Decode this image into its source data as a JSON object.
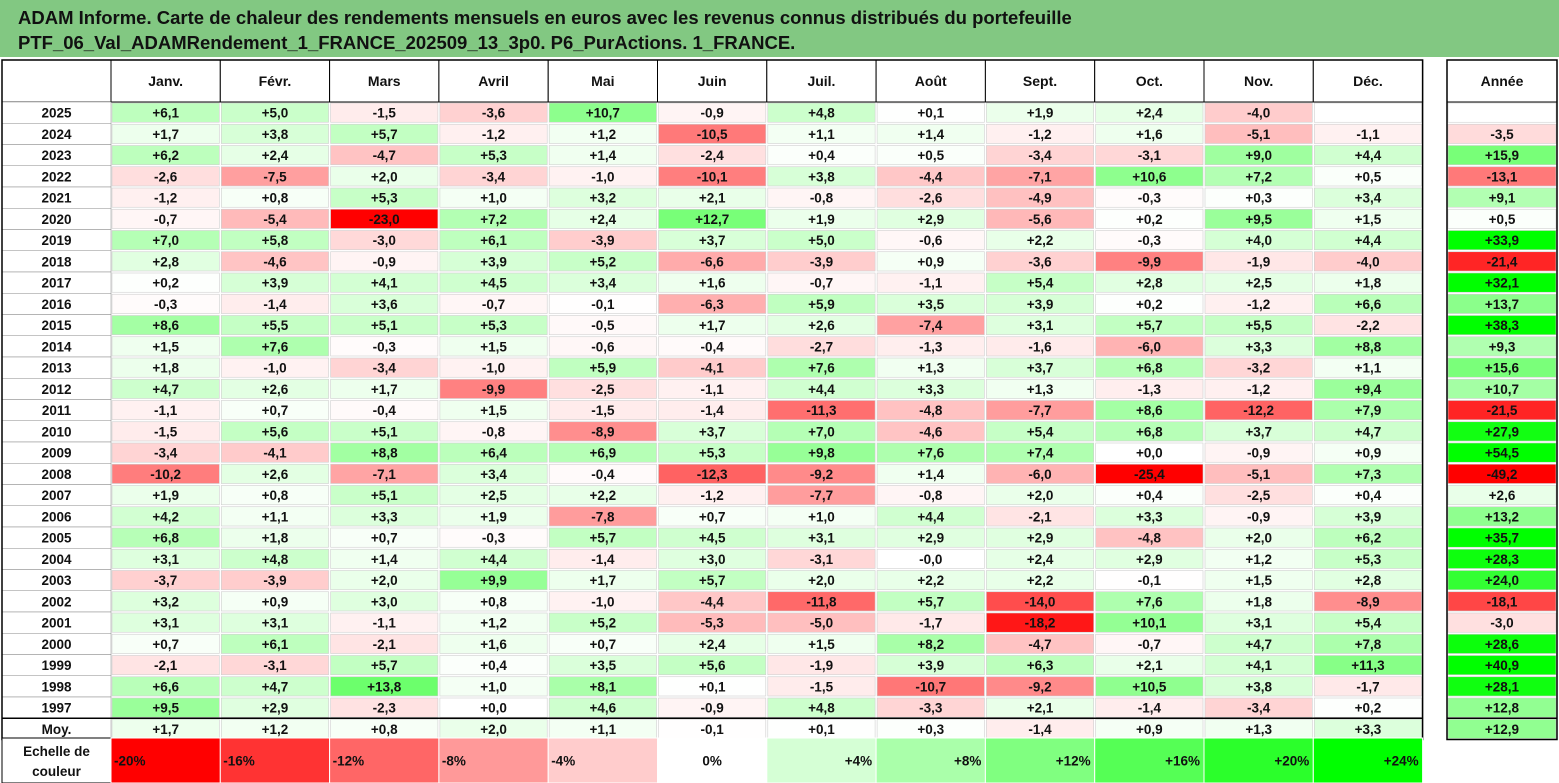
{
  "title": {
    "line1": "ADAM Informe. Carte de chaleur des rendements mensuels en euros avec les revenus connus distribués du portefeuille",
    "line2": "PTF_06_Val_ADAMRendement_1_FRANCE_202509_13_3p0. P6_PurActions. 1_FRANCE."
  },
  "colors": {
    "negative": "#ff0000",
    "positive": "#00ff00",
    "neutral": "#ffffff",
    "header_bg": "#82c882",
    "grid": "#000000"
  },
  "chart_data": {
    "type": "heatmap",
    "title": "ADAM Informe. Carte de chaleur des rendements mensuels en euros avec les revenus connus distribués du portefeuille",
    "subtitle": "PTF_06_Val_ADAMRendement_1_FRANCE_202509_13_3p0. P6_PurActions. 1_FRANCE.",
    "months": [
      "Janv.",
      "Févr.",
      "Mars",
      "Avril",
      "Mai",
      "Juin",
      "Juil.",
      "Août",
      "Sept.",
      "Oct.",
      "Nov.",
      "Déc."
    ],
    "annual_header": "Année",
    "rows": [
      {
        "year": "2025",
        "values": [
          "+6,1",
          "+5,0",
          "-1,5",
          "-3,6",
          "+10,7",
          "-0,9",
          "+4,8",
          "+0,1",
          "+1,9",
          "+2,4",
          "-4,0",
          ""
        ],
        "annual": ""
      },
      {
        "year": "2024",
        "values": [
          "+1,7",
          "+3,8",
          "+5,7",
          "-1,2",
          "+1,2",
          "-10,5",
          "+1,1",
          "+1,4",
          "-1,2",
          "+1,6",
          "-5,1",
          "-1,1"
        ],
        "annual": "-3,5"
      },
      {
        "year": "2023",
        "values": [
          "+6,2",
          "+2,4",
          "-4,7",
          "+5,3",
          "+1,4",
          "-2,4",
          "+0,4",
          "+0,5",
          "-3,4",
          "-3,1",
          "+9,0",
          "+4,4"
        ],
        "annual": "+15,9"
      },
      {
        "year": "2022",
        "values": [
          "-2,6",
          "-7,5",
          "+2,0",
          "-3,4",
          "-1,0",
          "-10,1",
          "+3,8",
          "-4,4",
          "-7,1",
          "+10,6",
          "+7,2",
          "+0,5"
        ],
        "annual": "-13,1"
      },
      {
        "year": "2021",
        "values": [
          "-1,2",
          "+0,8",
          "+5,3",
          "+1,0",
          "+3,2",
          "+2,1",
          "-0,8",
          "-2,6",
          "-4,9",
          "-0,3",
          "+0,3",
          "+3,4"
        ],
        "annual": "+9,1"
      },
      {
        "year": "2020",
        "values": [
          "-0,7",
          "-5,4",
          "-23,0",
          "+7,2",
          "+2,4",
          "+12,7",
          "+1,9",
          "+2,9",
          "-5,6",
          "+0,2",
          "+9,5",
          "+1,5"
        ],
        "annual": "+0,5"
      },
      {
        "year": "2019",
        "values": [
          "+7,0",
          "+5,8",
          "-3,0",
          "+6,1",
          "-3,9",
          "+3,7",
          "+5,0",
          "-0,6",
          "+2,2",
          "-0,3",
          "+4,0",
          "+4,4"
        ],
        "annual": "+33,9"
      },
      {
        "year": "2018",
        "values": [
          "+2,8",
          "-4,6",
          "-0,9",
          "+3,9",
          "+5,2",
          "-6,6",
          "-3,9",
          "+0,9",
          "-3,6",
          "-9,9",
          "-1,9",
          "-4,0"
        ],
        "annual": "-21,4"
      },
      {
        "year": "2017",
        "values": [
          "+0,2",
          "+3,9",
          "+4,1",
          "+4,5",
          "+3,4",
          "+1,6",
          "-0,7",
          "-1,1",
          "+5,4",
          "+2,8",
          "+2,5",
          "+1,8"
        ],
        "annual": "+32,1"
      },
      {
        "year": "2016",
        "values": [
          "-0,3",
          "-1,4",
          "+3,6",
          "-0,7",
          "-0,1",
          "-6,3",
          "+5,9",
          "+3,5",
          "+3,9",
          "+0,2",
          "-1,2",
          "+6,6"
        ],
        "annual": "+13,7"
      },
      {
        "year": "2015",
        "values": [
          "+8,6",
          "+5,5",
          "+5,1",
          "+5,3",
          "-0,5",
          "+1,7",
          "+2,6",
          "-7,4",
          "+3,1",
          "+5,7",
          "+5,5",
          "-2,2"
        ],
        "annual": "+38,3"
      },
      {
        "year": "2014",
        "values": [
          "+1,5",
          "+7,6",
          "-0,3",
          "+1,5",
          "-0,6",
          "-0,4",
          "-2,7",
          "-1,3",
          "-1,6",
          "-6,0",
          "+3,3",
          "+8,8"
        ],
        "annual": "+9,3"
      },
      {
        "year": "2013",
        "values": [
          "+1,8",
          "-1,0",
          "-3,4",
          "-1,0",
          "+5,9",
          "-4,1",
          "+7,6",
          "+1,3",
          "+3,7",
          "+6,8",
          "-3,2",
          "+1,1"
        ],
        "annual": "+15,6"
      },
      {
        "year": "2012",
        "values": [
          "+4,7",
          "+2,6",
          "+1,7",
          "-9,9",
          "-2,5",
          "-1,1",
          "+4,4",
          "+3,3",
          "+1,3",
          "-1,3",
          "-1,2",
          "+9,4"
        ],
        "annual": "+10,7"
      },
      {
        "year": "2011",
        "values": [
          "-1,1",
          "+0,7",
          "-0,4",
          "+1,5",
          "-1,5",
          "-1,4",
          "-11,3",
          "-4,8",
          "-7,7",
          "+8,6",
          "-12,2",
          "+7,9"
        ],
        "annual": "-21,5"
      },
      {
        "year": "2010",
        "values": [
          "-1,5",
          "+5,6",
          "+5,1",
          "-0,8",
          "-8,9",
          "+3,7",
          "+7,0",
          "-4,6",
          "+5,4",
          "+6,8",
          "+3,7",
          "+4,7"
        ],
        "annual": "+27,9"
      },
      {
        "year": "2009",
        "values": [
          "-3,4",
          "-4,1",
          "+8,8",
          "+6,4",
          "+6,9",
          "+5,3",
          "+9,8",
          "+7,6",
          "+7,4",
          "+0,0",
          "-0,9",
          "+0,9"
        ],
        "annual": "+54,5"
      },
      {
        "year": "2008",
        "values": [
          "-10,2",
          "+2,6",
          "-7,1",
          "+3,4",
          "-0,4",
          "-12,3",
          "-9,2",
          "+1,4",
          "-6,0",
          "-25,4",
          "-5,1",
          "+7,3"
        ],
        "annual": "-49,2"
      },
      {
        "year": "2007",
        "values": [
          "+1,9",
          "+0,8",
          "+5,1",
          "+2,5",
          "+2,2",
          "-1,2",
          "-7,7",
          "-0,8",
          "+2,0",
          "+0,4",
          "-2,5",
          "+0,4"
        ],
        "annual": "+2,6"
      },
      {
        "year": "2006",
        "values": [
          "+4,2",
          "+1,1",
          "+3,3",
          "+1,9",
          "-7,8",
          "+0,7",
          "+1,0",
          "+4,4",
          "-2,1",
          "+3,3",
          "-0,9",
          "+3,9"
        ],
        "annual": "+13,2"
      },
      {
        "year": "2005",
        "values": [
          "+6,8",
          "+1,8",
          "+0,7",
          "-0,3",
          "+5,7",
          "+4,5",
          "+3,1",
          "+2,9",
          "+2,9",
          "-4,8",
          "+2,0",
          "+6,2"
        ],
        "annual": "+35,7"
      },
      {
        "year": "2004",
        "values": [
          "+3,1",
          "+4,8",
          "+1,4",
          "+4,4",
          "-1,4",
          "+3,0",
          "-3,1",
          "-0,0",
          "+2,4",
          "+2,9",
          "+1,2",
          "+5,3"
        ],
        "annual": "+28,3"
      },
      {
        "year": "2003",
        "values": [
          "-3,7",
          "-3,9",
          "+2,0",
          "+9,9",
          "+1,7",
          "+5,7",
          "+2,0",
          "+2,2",
          "+2,2",
          "-0,1",
          "+1,5",
          "+2,8"
        ],
        "annual": "+24,0"
      },
      {
        "year": "2002",
        "values": [
          "+3,2",
          "+0,9",
          "+3,0",
          "+0,8",
          "-1,0",
          "-4,4",
          "-11,8",
          "+5,7",
          "-14,0",
          "+7,6",
          "+1,8",
          "-8,9"
        ],
        "annual": "-18,1"
      },
      {
        "year": "2001",
        "values": [
          "+3,1",
          "+3,1",
          "-1,1",
          "+1,2",
          "+5,2",
          "-5,3",
          "-5,0",
          "-1,7",
          "-18,2",
          "+10,1",
          "+3,1",
          "+5,4"
        ],
        "annual": "-3,0"
      },
      {
        "year": "2000",
        "values": [
          "+0,7",
          "+6,1",
          "-2,1",
          "+1,6",
          "+0,7",
          "+2,4",
          "+1,5",
          "+8,2",
          "-4,7",
          "-0,7",
          "+4,7",
          "+7,8"
        ],
        "annual": "+28,6"
      },
      {
        "year": "1999",
        "values": [
          "-2,1",
          "-3,1",
          "+5,7",
          "+0,4",
          "+3,5",
          "+5,6",
          "-1,9",
          "+3,9",
          "+6,3",
          "+2,1",
          "+4,1",
          "+11,3"
        ],
        "annual": "+40,9"
      },
      {
        "year": "1998",
        "values": [
          "+6,6",
          "+4,7",
          "+13,8",
          "+1,0",
          "+8,1",
          "+0,1",
          "-1,5",
          "-10,7",
          "-9,2",
          "+10,5",
          "+3,8",
          "-1,7"
        ],
        "annual": "+28,1"
      },
      {
        "year": "1997",
        "values": [
          "+9,5",
          "+2,9",
          "-2,3",
          "+0,0",
          "+4,6",
          "-0,9",
          "+4,8",
          "-3,3",
          "+2,1",
          "-1,4",
          "-3,4",
          "+0,2"
        ],
        "annual": "+12,8"
      }
    ],
    "average": {
      "label": "Moy.",
      "values": [
        "+1,7",
        "+1,2",
        "+0,8",
        "+2,0",
        "+1,1",
        "-0,1",
        "+0,1",
        "+0,3",
        "-1,4",
        "+0,9",
        "+1,3",
        "+3,3"
      ],
      "annual": "+12,9"
    },
    "scale": {
      "label_line1": "Echelle de",
      "label_line2": "couleur",
      "steps": [
        "-20%",
        "-16%",
        "-12%",
        "-8%",
        "-4%",
        "0%",
        "+4%",
        "+8%",
        "+12%",
        "+16%",
        "+20%",
        "+24%"
      ],
      "step_values": [
        -20,
        -16,
        -12,
        -8,
        -4,
        0,
        4,
        8,
        12,
        16,
        20,
        24
      ]
    }
  }
}
